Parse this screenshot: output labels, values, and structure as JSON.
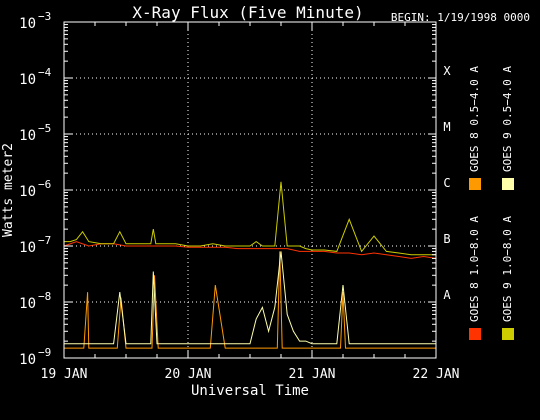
{
  "chart_data": {
    "type": "line",
    "title": "X-Ray Flux (Five Minute)",
    "begin_label": "BEGIN: 1/19/1998 0000",
    "ylabel": "Watts meter2",
    "xlabel": "Universal Time",
    "y_scale": "log",
    "ylim": [
      1e-09,
      0.001
    ],
    "xlim": [
      0,
      3
    ],
    "grid": true,
    "legend_placement": "right, rotated vertical",
    "y_ticks": [
      {
        "value": 1e-09,
        "base": "10",
        "exp": "−9"
      },
      {
        "value": 1e-08,
        "base": "10",
        "exp": "−8"
      },
      {
        "value": 1e-07,
        "base": "10",
        "exp": "−7"
      },
      {
        "value": 1e-06,
        "base": "10",
        "exp": "−6"
      },
      {
        "value": 1e-05,
        "base": "10",
        "exp": "−5"
      },
      {
        "value": 0.0001,
        "base": "10",
        "exp": "−4"
      },
      {
        "value": 0.001,
        "base": "10",
        "exp": "−3"
      }
    ],
    "x_ticks": [
      {
        "value": 0,
        "label": "19 JAN"
      },
      {
        "value": 1,
        "label": "20 JAN"
      },
      {
        "value": 2,
        "label": "21 JAN"
      },
      {
        "value": 3,
        "label": "22 JAN"
      }
    ],
    "flare_classes": [
      {
        "label": "A",
        "value": 1e-08
      },
      {
        "label": "B",
        "value": 1e-07
      },
      {
        "label": "C",
        "value": 1e-06
      },
      {
        "label": "M",
        "value": 1e-05
      },
      {
        "label": "X",
        "value": 0.0001
      }
    ],
    "series": [
      {
        "name": "GOES 8 1.0−8.0 A",
        "color": "#ff3300",
        "x": [
          0.0,
          0.1,
          0.2,
          0.3,
          0.4,
          0.5,
          0.6,
          0.7,
          0.8,
          0.9,
          1.0,
          1.1,
          1.2,
          1.3,
          1.4,
          1.5,
          1.6,
          1.7,
          1.8,
          1.9,
          2.0,
          2.1,
          2.2,
          2.3,
          2.4,
          2.5,
          2.6,
          2.7,
          2.8,
          2.9,
          3.0
        ],
        "y": [
          1e-07,
          1.2e-07,
          1e-07,
          1.1e-07,
          1.1e-07,
          1e-07,
          1e-07,
          1e-07,
          1e-07,
          1e-07,
          9.5e-08,
          9.5e-08,
          9.5e-08,
          9.5e-08,
          9e-08,
          9e-08,
          9e-08,
          9e-08,
          9e-08,
          8e-08,
          8e-08,
          8e-08,
          7.5e-08,
          7.5e-08,
          7e-08,
          7.5e-08,
          7e-08,
          6.5e-08,
          6e-08,
          6.5e-08,
          6e-08
        ]
      },
      {
        "name": "GOES 8 0.5−4.0 A",
        "color": "#ff9900",
        "x": [
          0.0,
          0.1,
          0.16,
          0.19,
          0.2,
          0.3,
          0.43,
          0.46,
          0.5,
          0.6,
          0.71,
          0.73,
          0.76,
          0.9,
          0.97,
          1.0,
          1.1,
          1.18,
          1.22,
          1.3,
          1.4,
          1.5,
          1.6,
          1.72,
          1.74,
          1.76,
          1.8,
          1.9,
          2.0,
          2.1,
          2.23,
          2.25,
          2.27,
          2.4,
          2.5,
          2.6,
          2.7,
          2.8,
          2.9,
          3.0
        ],
        "y": [
          1.5e-09,
          1.5e-09,
          1.5e-09,
          1.5e-08,
          1.5e-09,
          1.5e-09,
          1.5e-09,
          1.2e-08,
          1.5e-09,
          1.5e-09,
          1.5e-09,
          3e-08,
          1.5e-09,
          1.5e-09,
          1.5e-09,
          1.5e-09,
          1.5e-09,
          1.5e-09,
          2e-08,
          1.5e-09,
          1.5e-09,
          1.5e-09,
          1.5e-09,
          1.5e-09,
          8e-08,
          1.5e-09,
          1.5e-09,
          1.5e-09,
          1.5e-09,
          1.5e-09,
          1.5e-09,
          1.5e-08,
          1.5e-09,
          1.5e-09,
          1.5e-09,
          1.5e-09,
          1.5e-09,
          1.5e-09,
          1.5e-09,
          1.5e-09
        ]
      },
      {
        "name": "GOES 9 1.0−8.0 A",
        "color": "#cccc00",
        "x": [
          0.0,
          0.05,
          0.1,
          0.15,
          0.2,
          0.3,
          0.4,
          0.45,
          0.5,
          0.6,
          0.7,
          0.72,
          0.74,
          0.8,
          0.9,
          1.0,
          1.1,
          1.2,
          1.3,
          1.4,
          1.5,
          1.55,
          1.6,
          1.65,
          1.7,
          1.75,
          1.8,
          1.85,
          1.9,
          1.95,
          2.0,
          2.1,
          2.2,
          2.3,
          2.4,
          2.5,
          2.6,
          2.7,
          2.8,
          2.9,
          3.0
        ],
        "y": [
          1.2e-07,
          1.2e-07,
          1.3e-07,
          1.8e-07,
          1.2e-07,
          1.1e-07,
          1.1e-07,
          1.8e-07,
          1.1e-07,
          1.1e-07,
          1.1e-07,
          2e-07,
          1.1e-07,
          1.1e-07,
          1.1e-07,
          1e-07,
          1e-07,
          1.1e-07,
          1e-07,
          1e-07,
          1e-07,
          1.2e-07,
          1e-07,
          1e-07,
          1e-07,
          1.4e-06,
          1e-07,
          1e-07,
          1e-07,
          9e-08,
          8.5e-08,
          8.5e-08,
          8e-08,
          3e-07,
          8e-08,
          1.5e-07,
          8e-08,
          7.5e-08,
          7e-08,
          7e-08,
          7e-08
        ]
      },
      {
        "name": "GOES 9 0.5−4.0 A",
        "color": "#ffffaa",
        "x": [
          0.0,
          0.1,
          0.2,
          0.3,
          0.4,
          0.45,
          0.5,
          0.6,
          0.7,
          0.72,
          0.75,
          0.8,
          0.9,
          1.0,
          1.1,
          1.2,
          1.3,
          1.4,
          1.5,
          1.55,
          1.6,
          1.65,
          1.7,
          1.75,
          1.8,
          1.85,
          1.9,
          1.95,
          2.0,
          2.1,
          2.2,
          2.25,
          2.3,
          2.4,
          2.5,
          2.6,
          2.7,
          2.8,
          2.9,
          3.0
        ],
        "y": [
          1.8e-09,
          1.8e-09,
          1.8e-09,
          1.8e-09,
          1.8e-09,
          1.5e-08,
          1.8e-09,
          1.8e-09,
          1.8e-09,
          3.5e-08,
          1.8e-09,
          1.8e-09,
          1.8e-09,
          1.8e-09,
          1.8e-09,
          1.8e-09,
          1.8e-09,
          1.8e-09,
          1.8e-09,
          5e-09,
          8e-09,
          3e-09,
          8e-09,
          8e-08,
          6e-09,
          3e-09,
          2e-09,
          2e-09,
          1.8e-09,
          1.8e-09,
          1.8e-09,
          2e-08,
          1.8e-09,
          1.8e-09,
          1.8e-09,
          1.8e-09,
          1.8e-09,
          1.8e-09,
          1.8e-09,
          1.8e-09
        ]
      }
    ]
  }
}
